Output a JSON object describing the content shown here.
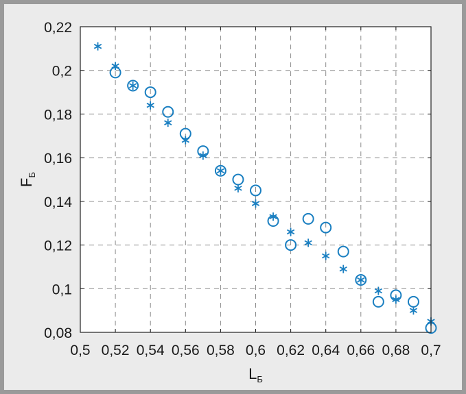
{
  "colors": {
    "frame": "#9a9a9a",
    "background": "#ebebeb",
    "plot_background": "#ffffff",
    "grid": "#8c8c8c",
    "marker": "#1a7fc1",
    "text": "#1a1a1a"
  },
  "chart_data": {
    "type": "scatter",
    "title": "",
    "xlabel": {
      "main": "L",
      "sub": "Б"
    },
    "ylabel": {
      "main": "F",
      "sub": "Б"
    },
    "xlim": [
      0.5,
      0.7
    ],
    "ylim": [
      0.08,
      0.22
    ],
    "grid": true,
    "xticks": [
      0.5,
      0.52,
      0.54,
      0.56,
      0.58,
      0.6,
      0.62,
      0.64,
      0.66,
      0.68,
      0.7
    ],
    "xtick_labels": [
      "0,5",
      "0,52",
      "0,54",
      "0,56",
      "0,58",
      "0,6",
      "0,62",
      "0,64",
      "0,66",
      "0,68",
      "0,7"
    ],
    "yticks": [
      0.08,
      0.1,
      0.12,
      0.14,
      0.16,
      0.18,
      0.2,
      0.22
    ],
    "ytick_labels": [
      "0,08",
      "0,1",
      "0,12",
      "0,14",
      "0,16",
      "0,18",
      "0,2",
      "0,22"
    ],
    "series": [
      {
        "name": "circles",
        "marker": "circle",
        "points": [
          [
            0.52,
            0.199
          ],
          [
            0.53,
            0.193
          ],
          [
            0.54,
            0.19
          ],
          [
            0.55,
            0.181
          ],
          [
            0.56,
            0.171
          ],
          [
            0.57,
            0.163
          ],
          [
            0.58,
            0.154
          ],
          [
            0.59,
            0.15
          ],
          [
            0.6,
            0.145
          ],
          [
            0.61,
            0.131
          ],
          [
            0.62,
            0.12
          ],
          [
            0.63,
            0.132
          ],
          [
            0.64,
            0.128
          ],
          [
            0.65,
            0.117
          ],
          [
            0.66,
            0.104
          ],
          [
            0.67,
            0.094
          ],
          [
            0.68,
            0.097
          ],
          [
            0.69,
            0.094
          ],
          [
            0.7,
            0.082
          ]
        ]
      },
      {
        "name": "stars",
        "marker": "star",
        "points": [
          [
            0.51,
            0.211
          ],
          [
            0.52,
            0.202
          ],
          [
            0.53,
            0.193
          ],
          [
            0.54,
            0.184
          ],
          [
            0.55,
            0.176
          ],
          [
            0.56,
            0.168
          ],
          [
            0.57,
            0.161
          ],
          [
            0.58,
            0.154
          ],
          [
            0.59,
            0.146
          ],
          [
            0.6,
            0.139
          ],
          [
            0.61,
            0.133
          ],
          [
            0.62,
            0.126
          ],
          [
            0.63,
            0.121
          ],
          [
            0.64,
            0.115
          ],
          [
            0.65,
            0.109
          ],
          [
            0.66,
            0.104
          ],
          [
            0.67,
            0.099
          ],
          [
            0.68,
            0.095
          ],
          [
            0.69,
            0.09
          ],
          [
            0.7,
            0.085
          ]
        ]
      }
    ]
  }
}
